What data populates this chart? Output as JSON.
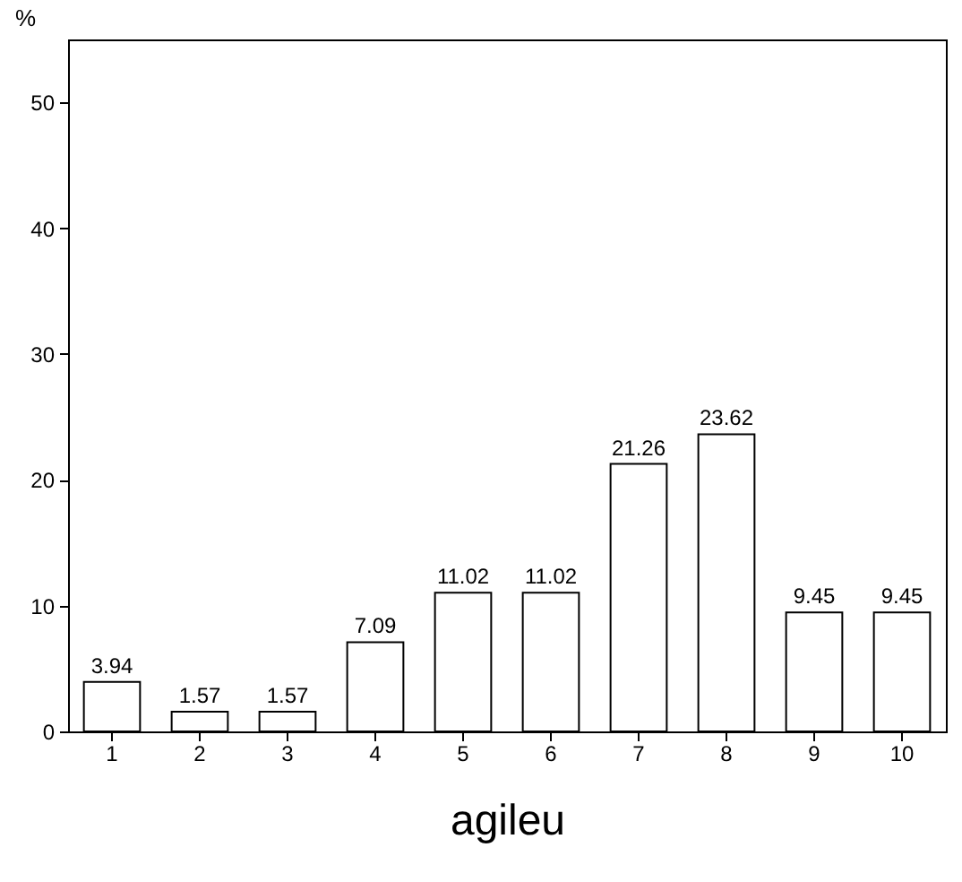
{
  "chart_data": {
    "type": "bar",
    "xlabel": "agileu",
    "ylabel": "%",
    "categories": [
      "1",
      "2",
      "3",
      "4",
      "5",
      "6",
      "7",
      "8",
      "9",
      "10"
    ],
    "values": [
      3.94,
      1.57,
      1.57,
      7.09,
      11.02,
      11.02,
      21.26,
      23.62,
      9.45,
      9.45
    ],
    "color": "#ffffff",
    "ylim": [
      0,
      55
    ],
    "yticks": [
      0,
      10,
      20,
      30,
      40,
      50
    ],
    "data_labels": true,
    "grid": false
  }
}
